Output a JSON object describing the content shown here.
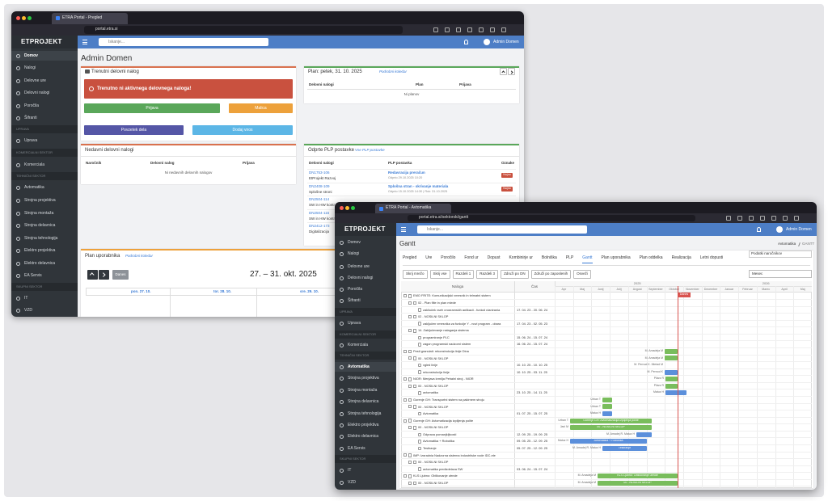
{
  "window1": {
    "tab_title": "ETRA Portal - Pregled",
    "url": "portal.etra.si",
    "logo": "ETPROJEKT",
    "search_placeholder": "Iskanje...",
    "user": "Admin Domen",
    "sidebar": [
      {
        "label": "Domov",
        "active": true
      },
      {
        "label": "Nalogi"
      },
      {
        "label": "Delovne ure"
      },
      {
        "label": "Delovni nalogi"
      },
      {
        "label": "Poročila"
      },
      {
        "label": "Šifranti"
      },
      {
        "section": "UPRAVA"
      },
      {
        "label": "Uprava"
      },
      {
        "section": "KOMERCIALNI SEKTOR"
      },
      {
        "label": "Komerciala"
      },
      {
        "section": "TEHNIČNI SEKTOR"
      },
      {
        "label": "Avtomatika"
      },
      {
        "label": "Strojna projektiva"
      },
      {
        "label": "Strojna montaža"
      },
      {
        "label": "Strojna delavnica"
      },
      {
        "label": "Strojna tehnologija"
      },
      {
        "label": "Elektro projektiva"
      },
      {
        "label": "Elektro delavnica"
      },
      {
        "label": "EA Servis"
      },
      {
        "section": "SKUPNI SEKTOR"
      },
      {
        "label": "IT"
      },
      {
        "label": "VZD"
      }
    ],
    "page_title": "Admin Domen",
    "current_order": {
      "title": "Trenutni delovni nalog",
      "alert": "Trenutno ni aktivnega delovnega naloga!",
      "buttons": [
        "Prijava",
        "Malica",
        "Povzetek dela",
        "Dodaj vnos"
      ]
    },
    "plan": {
      "title": "Plan: petek, 31. 10. 2025",
      "link": "Podrobni koledar",
      "columns": [
        "Delovni nalogi",
        "Plan",
        "Prijava"
      ],
      "empty": "Ni planov"
    },
    "recent": {
      "title": "Nedavni delovni nalogi",
      "columns": [
        "Naročnik",
        "Delovni nalog",
        "Prijava"
      ],
      "empty": "Ni nedavnih delovnih nalogov"
    },
    "plp": {
      "title": "Odprte PLP postavke",
      "link": "Vse PLP postavke",
      "columns": [
        "Delovni nalogi",
        "PLP postavka",
        "Oznake"
      ],
      "rows": [
        {
          "code": "DN1753-106",
          "client": "EtProjekt Razvoj",
          "item": "Redavracija preračun",
          "info": "Odprto 29.10.2025 10:20",
          "tag": "Nujno"
        },
        {
          "code": "DN2408-109",
          "client": "Splošne stroni",
          "item": "Splošna stran - skrivanje materiala",
          "info": "Odprto 15.10.2025 14:30 | Rok: 31.10.2025",
          "tag": "Nujno"
        },
        {
          "code": "DN2504-114",
          "client": "SW in HW kontr"
        },
        {
          "code": "DN2504-116",
          "client": "SW in HW kontr"
        },
        {
          "code": "DN2412-173",
          "client": "Digitalizacija"
        }
      ]
    },
    "user_plan": {
      "title": "Plan uporabnika",
      "link": "Podrobni koledar",
      "today": "Danes",
      "range": "27. – 31. okt. 2025",
      "days": [
        "pon. 27. 10.",
        "tor. 28. 10.",
        "sre. 29. 10."
      ]
    }
  },
  "window2": {
    "tab_title": "ETRA Portal - Avtomatika",
    "url": "portal.etra.si/sektorski/gantt",
    "logo": "ETPROJEKT",
    "search_placeholder": "Iskanje...",
    "user": "Admin Domen",
    "sidebar": [
      {
        "label": "Domov"
      },
      {
        "label": "Nalogi"
      },
      {
        "label": "Delovne ure"
      },
      {
        "label": "Delovni nalogi"
      },
      {
        "label": "Poročila"
      },
      {
        "label": "Šifranti"
      },
      {
        "section": "UPRAVA"
      },
      {
        "label": "Uprava"
      },
      {
        "section": "KOMERCIALNI SEKTOR"
      },
      {
        "label": "Komerciala"
      },
      {
        "section": "TEHNIČNI SEKTOR"
      },
      {
        "label": "Avtomatika",
        "active": true
      },
      {
        "label": "Strojna projektiva"
      },
      {
        "label": "Strojna montaža"
      },
      {
        "label": "Strojna delavnica"
      },
      {
        "label": "Strojna tehnologija"
      },
      {
        "label": "Elektro projektiva"
      },
      {
        "label": "Elektro delavnica"
      },
      {
        "label": "EA Servis"
      },
      {
        "section": "SKUPNI SEKTOR"
      },
      {
        "label": "IT"
      },
      {
        "label": "VZD"
      }
    ],
    "page_title": "Gantt",
    "breadcrumb": [
      "Avtomatika",
      "GANTT"
    ],
    "tabs": [
      "Pregled",
      "Ure",
      "Poročilo",
      "Fond ur",
      "Dopust",
      "Kombinirje ur",
      "Bolniška",
      "PLP",
      "Gantt",
      "Plan uporabnika",
      "Plan oddelka",
      "Realizacija",
      "Letni dopusti"
    ],
    "client_filter": "Podatki naročnikov",
    "buttons": [
      "Skrij mrežo",
      "Skrij vse",
      "Razdeli 1",
      "Razdeli 3",
      "Združi po DN",
      "Združi po zaposlenih",
      "Osveži"
    ],
    "view_select": "Mesec",
    "columns": [
      "Naloga",
      "Čas"
    ],
    "years": [
      "2025",
      "2026"
    ],
    "months": [
      "Apr",
      "Maj",
      "Junij",
      "Julij",
      "Avgust",
      "September",
      "Oktober",
      "November",
      "December",
      "Januar",
      "Februar",
      "Marec",
      "April",
      "Maj"
    ],
    "today": "Danes",
    "rows": [
      {
        "task": "EMO FRITE: Komunikacijski vmesnik in telmatni sistem"
      },
      {
        "task": "02 - Plan filte in plan mlede"
      },
      {
        "task": "zaključek vseh programskih aplikacij - funkcij planiranja",
        "time": "17. 04. 23 - 20. 06. 24"
      },
      {
        "task": "02 - NOSILNI SKLOP"
      },
      {
        "task": "zaključen vmesnika za funkcije Y - novi program - obara",
        "time": "17. 04. 23 - 02. 05. 23"
      },
      {
        "task": "14. Zaključevanje nalaganja sistema"
      },
      {
        "task": "programiranje PLC",
        "time": "15. 06. 24 - 15. 07. 24"
      },
      {
        "task": "zagon programski nadzorni sistem",
        "time": "16. 06. 24 - 15. 07. 24"
      },
      {
        "task": "Pesti granulati: rekonstrukcija linije Dina",
        "assignee": "M. Amadeja M"
      },
      {
        "task": "00 - NOSILNI SKLOP",
        "assignee": "M. Amadeja M"
      },
      {
        "task": "vgled linije",
        "time": "10. 10. 25 - 10. 10. 25",
        "assignee": "M. Pernod K. Mietad M"
      },
      {
        "task": "rekonstrukcija linije",
        "time": "10. 10. 25 - 03. 11. 25",
        "assignee": "M. Pernod K"
      },
      {
        "task": "NIOR: Menjava krmilja Pehalni stroj - NIOR",
        "assignee": "Pilarz R"
      },
      {
        "task": "00 - NOSILNI SKLOP",
        "assignee": "Pilarz R"
      },
      {
        "task": "avtomatika",
        "time": "23. 10. 25 - 14. 11. 25",
        "assignee": "Matuz H"
      },
      {
        "task": "Gorenje GH: Transportni sistem na pakirnem stroju",
        "assignee": "Urban T"
      },
      {
        "task": "00 - NOSILNI SKLOP",
        "assignee": "Urban T"
      },
      {
        "task": "Avtomatika",
        "time": "01. 07. 25 - 15. 07. 25",
        "assignee": "Matuz H"
      },
      {
        "task": "Gorenje GH: Avtomatizacija izpiljenja polite",
        "assignee": "Urban T"
      },
      {
        "task": "00 - NOSILNI SKLOP",
        "assignee": "Jani M"
      },
      {
        "task": "Odprava pomanjkljivosti",
        "time": "12. 09. 25 - 19. 09. 25",
        "assignee": "M. Amadej R. Matuz H"
      },
      {
        "task": "Avtomatika + Robotika",
        "time": "09. 05. 25 - 12. 09. 25",
        "assignee": "Matuz H"
      },
      {
        "task": "Testiranje",
        "time": "05. 07. 25 - 12. 09. 25",
        "assignee": "M. Amadej R. Matuz H"
      },
      {
        "task": "IMP: Izgradnja Nadzorna sistema industrijske vode IDC-ele"
      },
      {
        "task": "00 - NOSILNI SKLOP"
      },
      {
        "task": "avtomatika predizdelava SW",
        "time": "03. 06. 24 - 15. 07. 24"
      },
      {
        "task": "KLS Ljubno: Oblikovanje utrnde",
        "assignee": "M. Amadeja M"
      },
      {
        "task": "00 - NOSILNI SKLOP",
        "assignee": "M. Amadeja M"
      }
    ]
  }
}
